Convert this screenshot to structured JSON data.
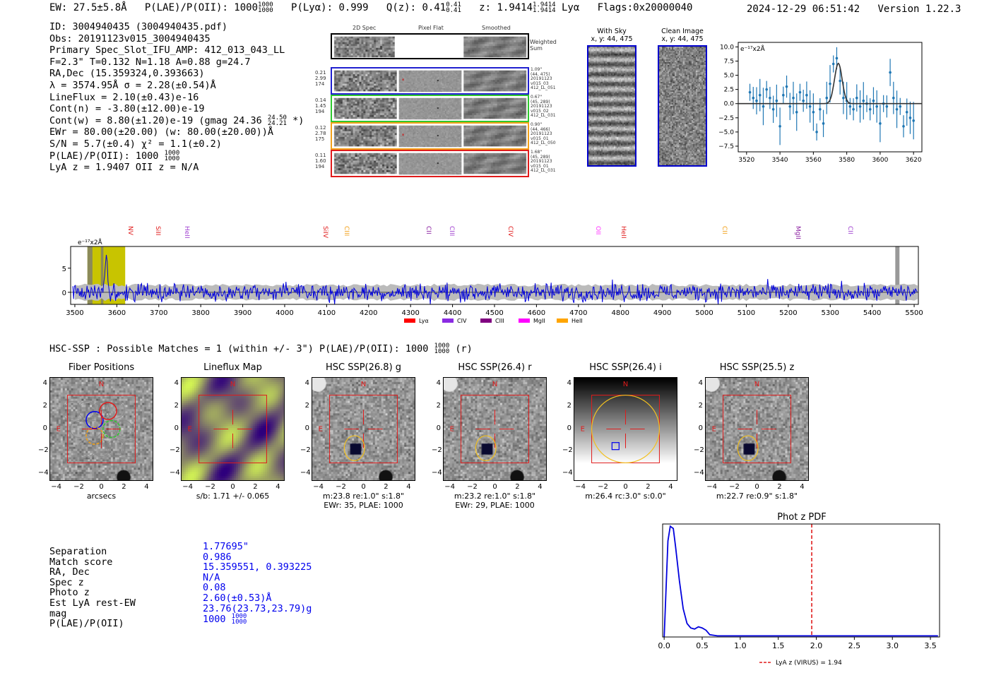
{
  "header": {
    "ew": "EW: 27.5±5.8Å",
    "plae_label": "P(LAE)/P(OII): 1000",
    "plae_hi": "1000",
    "plae_lo": "1000",
    "plya": "P(Lyα): 0.999",
    "qz": "Q(z): 0.41",
    "qz_hi": "0.41",
    "qz_lo": "0.41",
    "z": "z: 1.9414",
    "z_hi": "1.9414",
    "z_lo": "1.9414",
    "lya": "Lyα",
    "flags": "Flags:0x20000040",
    "datetime": "2024-12-29 06:51:42",
    "version": "Version 1.22.3"
  },
  "info": {
    "id": "ID: 3004940435 (3004940435.pdf)",
    "obs": "Obs: 20191123v015_3004940435",
    "primary": "Primary Spec_Slot_IFU_AMP: 412_013_043_LL",
    "fit": "F=2.3\"  T=0.132  N=1.18  A=0.88  g=24.7",
    "radec": "RA,Dec (15.359324,0.393663)",
    "lambda": "λ = 3574.95Å   σ = 2.28(±0.54)Å",
    "lineflux": "LineFlux = 2.10(±0.43)e-16",
    "contn": "Cont(n) = -3.80(±12.00)e-19",
    "contw": "Cont(w) = 8.80(±1.20)e-19 (gmag 24.36",
    "contw_hi": "24.50",
    "contw_lo": "24.21",
    "contw_end": "*)",
    "ewr": "EWr = 80.00(±20.00) (w: 80.00(±20.00))Å",
    "sn": "S/N = 5.7(±0.4)  χ² = 1.1(±0.2)",
    "plae": "P(LAE)/P(OII): 1000",
    "plae_hi": "1000",
    "plae_lo": "1000",
    "lyaz": "LyA z = 1.9407  OII z = N/A"
  },
  "spec2d": {
    "col_2d": "2D Spec",
    "col_flat": "Pixel Flat",
    "col_smooth": "Smoothed",
    "weighted": "Weighted",
    "sum": "Sum",
    "rows": [
      {
        "left": [
          "0.21",
          "2.99",
          "174"
        ],
        "right": [
          "1.09\"",
          "(44, 475)",
          "20191123",
          "v015_03",
          "412_LL_051"
        ],
        "color": "#1f1fd0"
      },
      {
        "left": [
          "0.14",
          "1.45",
          "194"
        ],
        "right": [
          "0.67\"",
          "(45, 289)",
          "20191123",
          "v015_02",
          "412_LL_031"
        ],
        "color": "#2fc82f"
      },
      {
        "left": [
          "0.12",
          "2.78",
          "175"
        ],
        "right": [
          "0.90\"",
          "(44, 466)",
          "20191123",
          "v015_01",
          "412_LL_050"
        ],
        "color": "#f2a11a"
      },
      {
        "left": [
          "0.11",
          "1.60",
          "194"
        ],
        "right": [
          "1.68\"",
          "(45, 289)",
          "20191123",
          "v015_01",
          "412_LL_031"
        ],
        "color": "#e01b1b"
      }
    ]
  },
  "cutouts": {
    "with_sky": "With Sky",
    "with_sky_xy": "x, y: 44, 475",
    "clean": "Clean Image",
    "clean_xy": "x, y: 44, 475"
  },
  "zoom_spec": {
    "ylabel": "e⁻¹⁷x2Å",
    "xticks": [
      "3520",
      "3540",
      "3560",
      "3580",
      "3600",
      "3620"
    ],
    "yticks": [
      "10.0",
      "7.5",
      "5.0",
      "2.5",
      "0.0",
      "−2.5",
      "−5.0",
      "−7.5"
    ]
  },
  "full_spec": {
    "ylabel": "e⁻¹⁷x2Å",
    "yticks": [
      "5",
      "0"
    ],
    "xticks": [
      "3500",
      "3600",
      "3700",
      "3800",
      "3900",
      "4000",
      "4100",
      "4200",
      "4300",
      "4400",
      "4500",
      "4600",
      "4700",
      "4800",
      "4900",
      "5000",
      "5100",
      "5200",
      "5300",
      "5400",
      "5500"
    ],
    "lines": [
      {
        "name": "NV",
        "wave": 3650,
        "color": "#e01b1b"
      },
      {
        "name": "SiII",
        "wave": 3715,
        "color": "#e01b1b"
      },
      {
        "name": "HeII",
        "wave": 3785,
        "color": "#a040d0"
      },
      {
        "name": "SiIV",
        "wave": 4115,
        "color": "#e01b1b"
      },
      {
        "name": "CIII",
        "wave": 4165,
        "color": "#f2a11a"
      },
      {
        "name": "CII",
        "wave": 4360,
        "color": "#8a1fa0"
      },
      {
        "name": "CIII",
        "wave": 4415,
        "color": "#a040d0"
      },
      {
        "name": "CIV",
        "wave": 4555,
        "color": "#e01b1b"
      },
      {
        "name": "OII",
        "wave": 4765,
        "color": "#ff33ff"
      },
      {
        "name": "HeII",
        "wave": 4825,
        "color": "#e01b1b"
      },
      {
        "name": "CII",
        "wave": 5065,
        "color": "#f2a11a"
      },
      {
        "name": "MgII",
        "wave": 5240,
        "color": "#8a1fa0"
      },
      {
        "name": "CII",
        "wave": 5365,
        "color": "#a040d0"
      }
    ],
    "legend": [
      {
        "name": "Lyα",
        "color": "#ff0000"
      },
      {
        "name": "CIV",
        "color": "#8a2be2"
      },
      {
        "name": "CIII",
        "color": "#800080"
      },
      {
        "name": "MgII",
        "color": "#ff00ff"
      },
      {
        "name": "HeII",
        "color": "#ffa500"
      }
    ]
  },
  "hsc": {
    "title": "HSC-SSP : Possible Matches = 1 (within +/- 3\")  P(LAE)/P(OII): 1000",
    "title_hi": "1000",
    "title_lo": "1000",
    "title_end": "(r)",
    "panels": [
      {
        "title": "Fiber Positions",
        "cap1": "arcsecs",
        "cap2": ""
      },
      {
        "title": "Lineflux Map",
        "cap1": "s/b: 1.71 +/- 0.065",
        "cap2": ""
      },
      {
        "title": "HSC SSP(26.8) g",
        "cap1": "m:23.8  re:1.0\"  s:1.8\"",
        "cap2": "EWr: 35, PLAE: 1000"
      },
      {
        "title": "HSC SSP(26.4) r",
        "cap1": "m:23.2  re:1.0\"  s:1.8\"",
        "cap2": "EWr: 29, PLAE: 1000"
      },
      {
        "title": "HSC SSP(26.4) i",
        "cap1": "m:26.4  rc:3.0\"  s:0.0\"",
        "cap2": ""
      },
      {
        "title": "HSC SSP(25.5) z",
        "cap1": "m:22.7  re:0.9\"  s:1.8\"",
        "cap2": ""
      }
    ],
    "ticks": [
      "4",
      "2",
      "0",
      "−2",
      "−4"
    ],
    "xticks": [
      "−4",
      "−2",
      "0",
      "2",
      "4"
    ],
    "north": "N",
    "east": "E"
  },
  "match": {
    "labels": [
      "Separation",
      "Match score",
      "RA, Dec",
      "Spec z",
      "Photo z",
      "Est LyA rest-EW",
      "mag",
      "P(LAE)/P(OII)"
    ],
    "values": [
      "1.77695\"",
      "0.986",
      "15.359551, 0.393225",
      "N/A",
      "0.08",
      "2.60(±0.53)Å",
      "23.76(23.73,23.79)g",
      "1000"
    ],
    "plae_hi": "1000",
    "plae_lo": "1000"
  },
  "photz": {
    "title": "Phot z PDF",
    "xticks": [
      "0.0",
      "0.5",
      "1.0",
      "1.5",
      "2.0",
      "2.5",
      "3.0",
      "3.5"
    ],
    "legend": "LyA z (VIRUS) = 1.94"
  },
  "chart_data": [
    {
      "type": "scatter",
      "title": "",
      "xlabel": "",
      "ylabel": "e⁻¹⁷x2Å",
      "xlim": [
        3515,
        3625
      ],
      "ylim": [
        -8.5,
        10.8
      ],
      "x": [
        3522,
        3524,
        3526,
        3528,
        3530,
        3532,
        3534,
        3536,
        3538,
        3540,
        3542,
        3544,
        3546,
        3548,
        3550,
        3552,
        3554,
        3556,
        3558,
        3560,
        3562,
        3564,
        3566,
        3568,
        3570,
        3572,
        3574,
        3576,
        3578,
        3580,
        3582,
        3584,
        3586,
        3588,
        3590,
        3592,
        3594,
        3596,
        3598,
        3600,
        3602,
        3604,
        3606,
        3608,
        3610,
        3612,
        3614,
        3616,
        3618,
        3620
      ],
      "y": [
        2.0,
        1.0,
        0.5,
        1.5,
        -0.5,
        2.5,
        1.0,
        -1.0,
        0.5,
        -4.0,
        1.5,
        3.0,
        -0.5,
        1.0,
        -1.5,
        2.0,
        0.5,
        1.5,
        -0.5,
        -1.5,
        -5.0,
        -1.0,
        -3.5,
        1.0,
        3.5,
        7.0,
        8.0,
        4.0,
        1.0,
        0.5,
        -0.5,
        -1.0,
        1.0,
        -0.5,
        0.5,
        0.0,
        -1.0,
        0.5,
        -0.5,
        -3.5,
        0.0,
        -0.5,
        5.5,
        1.0,
        -1.0,
        -0.5,
        -4.0,
        -1.5,
        -2.5,
        -3.0
      ],
      "fit": {
        "center": 3574.95,
        "sigma": 2.28,
        "amplitude": 7.1
      }
    },
    {
      "type": "line",
      "title": "",
      "xlabel": "",
      "ylabel": "e⁻¹⁷x2Å",
      "xlim": [
        3490,
        5510
      ],
      "ylim": [
        -2.5,
        9.5
      ],
      "seed": 7,
      "noise_sigma": 1.3,
      "emission_window": [
        3530,
        3620
      ],
      "emission_peak": {
        "wave": 3575,
        "flux": 8.0
      },
      "masked_regions": [
        [
          3530,
          3542
        ],
        [
          3562,
          3568
        ],
        [
          5455,
          5465
        ]
      ]
    },
    {
      "type": "line",
      "title": "Phot z PDF",
      "xlabel": "",
      "ylabel": "",
      "xlim": [
        -0.02,
        3.62
      ],
      "ylim": [
        0,
        1.0
      ],
      "x": [
        0.0,
        0.05,
        0.08,
        0.12,
        0.15,
        0.2,
        0.25,
        0.3,
        0.35,
        0.4,
        0.45,
        0.5,
        0.55,
        0.6,
        0.7,
        0.8,
        1.0,
        1.5,
        2.0,
        2.5,
        3.0,
        3.5,
        3.6
      ],
      "y": [
        0.0,
        0.85,
        0.98,
        0.96,
        0.8,
        0.5,
        0.25,
        0.12,
        0.08,
        0.07,
        0.09,
        0.08,
        0.06,
        0.02,
        0.01,
        0.01,
        0.01,
        0.01,
        0.01,
        0.01,
        0.01,
        0.01,
        0.01
      ],
      "vline": {
        "x": 1.94,
        "label": "LyA z (VIRUS) = 1.94",
        "color": "#e01b1b"
      }
    }
  ]
}
